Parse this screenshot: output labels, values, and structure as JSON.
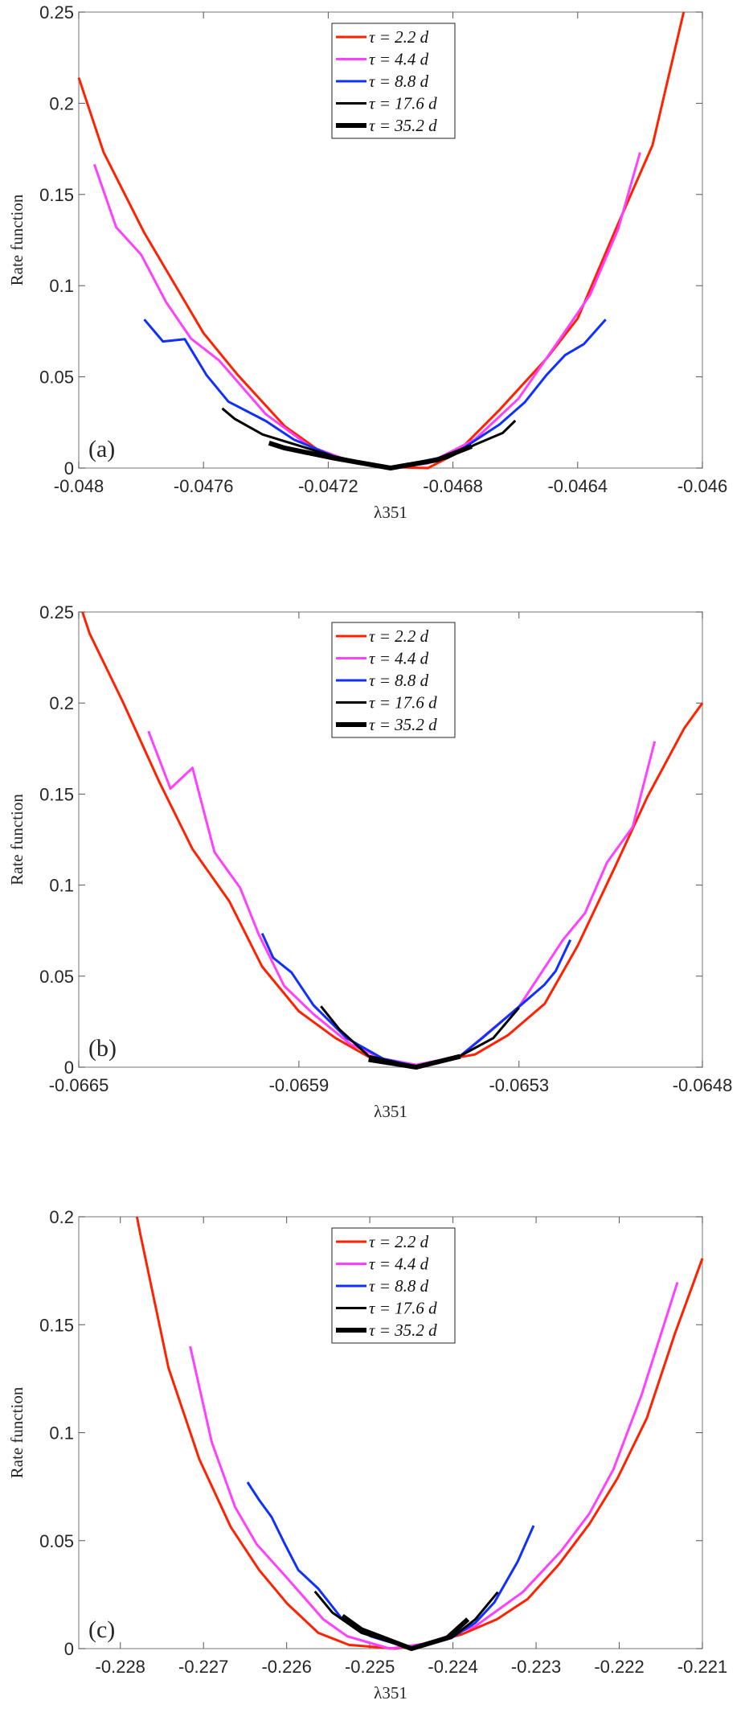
{
  "colors": {
    "tau_2_2": "#ff2200",
    "tau_4_4": "#ff40ff",
    "tau_8_8": "#1030ff",
    "tau_17_6": "#000000",
    "tau_35_2": "#000000",
    "axis": "#8c8c8c"
  },
  "chart_data": [
    {
      "type": "line",
      "panel_label": "(a)",
      "xlabel": "λ351",
      "ylabel": "Rate function",
      "xlim": [
        -0.048,
        -0.046
      ],
      "ylim": [
        0,
        0.25
      ],
      "xticks": [
        -0.048,
        -0.0476,
        -0.0472,
        -0.0468,
        -0.0464,
        -0.046
      ],
      "xtick_labels": [
        "-0.048",
        "-0.0476",
        "-0.0472",
        "-0.0468",
        "-0.0464",
        "-0.046"
      ],
      "yticks": [
        0,
        0.05,
        0.1,
        0.15,
        0.2,
        0.25
      ],
      "ytick_labels": [
        "0",
        "0.05",
        "0.1",
        "0.15",
        "0.2",
        "0.25"
      ],
      "legend_position": "top-center",
      "series": [
        {
          "name": "τ = 2.2 d",
          "color": "#ff2200",
          "width": 3,
          "x": [
            -0.048,
            -0.04792,
            -0.04779,
            -0.0476,
            -0.04749,
            -0.04734,
            -0.0472,
            -0.04703,
            -0.04688,
            -0.04679,
            -0.04665,
            -0.0465,
            -0.0464,
            -0.04627,
            -0.04616,
            -0.04606
          ],
          "y": [
            0.214,
            0.173,
            0.129,
            0.074,
            0.051,
            0.023,
            0.006,
            0.0007,
            0,
            0.008,
            0.032,
            0.06,
            0.082,
            0.134,
            0.177,
            0.25
          ]
        },
        {
          "name": "τ = 4.4 d",
          "color": "#ff40ff",
          "width": 3,
          "x": [
            -0.04795,
            -0.04788,
            -0.0478,
            -0.04772,
            -0.04764,
            -0.04755,
            -0.0474,
            -0.04726,
            -0.04711,
            -0.047,
            -0.04688,
            -0.04673,
            -0.04659,
            -0.04644,
            -0.04636,
            -0.04627,
            -0.0462
          ],
          "y": [
            0.1665,
            0.132,
            0.117,
            0.091,
            0.071,
            0.059,
            0.0295,
            0.012,
            0.0026,
            0,
            0.0026,
            0.0156,
            0.038,
            0.075,
            0.095,
            0.131,
            0.173
          ]
        },
        {
          "name": "τ = 8.8 d",
          "color": "#1030ff",
          "width": 3,
          "x": [
            -0.04779,
            -0.04773,
            -0.04766,
            -0.04759,
            -0.04752,
            -0.0474,
            -0.04731,
            -0.04718,
            -0.047,
            -0.0468,
            -0.04665,
            -0.04657,
            -0.0465,
            -0.04644,
            -0.04638,
            -0.04631
          ],
          "y": [
            0.0815,
            0.0694,
            0.0707,
            0.0509,
            0.0364,
            0.0258,
            0.0156,
            0.0063,
            0,
            0.0072,
            0.024,
            0.036,
            0.051,
            0.062,
            0.068,
            0.0815
          ]
        },
        {
          "name": "τ = 17.6 d",
          "color": "#000000",
          "width": 3,
          "x": [
            -0.04754,
            -0.0475,
            -0.04741,
            -0.04734,
            -0.04718,
            -0.047,
            -0.04682,
            -0.04673,
            -0.04664,
            -0.0466
          ],
          "y": [
            0.0327,
            0.027,
            0.0184,
            0.0147,
            0.0063,
            0,
            0.0054,
            0.0128,
            0.0193,
            0.026
          ]
        },
        {
          "name": "τ = 35.2 d",
          "color": "#000000",
          "width": 6,
          "x": [
            -0.04739,
            -0.04734,
            -0.04718,
            -0.047,
            -0.04685,
            -0.04674
          ],
          "y": [
            0.0137,
            0.011,
            0.0054,
            0,
            0.0045,
            0.0119
          ]
        }
      ]
    },
    {
      "type": "line",
      "panel_label": "(b)",
      "xlabel": "λ351",
      "ylabel": "Rate function",
      "xlim": [
        -0.0665,
        -0.0648
      ],
      "ylim": [
        0,
        0.25
      ],
      "xticks": [
        -0.0665,
        -0.0659,
        -0.0653,
        -0.0648
      ],
      "xtick_labels": [
        "-0.0665",
        "-0.0659",
        "-0.0653",
        "-0.0648"
      ],
      "yticks": [
        0,
        0.05,
        0.1,
        0.15,
        0.2,
        0.25
      ],
      "ytick_labels": [
        "0",
        "0.05",
        "0.1",
        "0.15",
        "0.2",
        "0.25"
      ],
      "legend_position": "top-center",
      "series": [
        {
          "name": "τ = 2.2 d",
          "color": "#ff2200",
          "width": 3,
          "x": [
            -0.06649,
            -0.06647,
            -0.06638,
            -0.06628,
            -0.06619,
            -0.06609,
            -0.066,
            -0.0659,
            -0.0658,
            -0.0657,
            -0.06558,
            -0.06542,
            -0.06533,
            -0.06523,
            -0.06514,
            -0.06504,
            -0.06495,
            -0.06485,
            -0.0648
          ],
          "y": [
            0.25,
            0.238,
            0.2007,
            0.1565,
            0.1198,
            0.0912,
            0.0552,
            0.0307,
            0.016,
            0.0046,
            0.0013,
            0.007,
            0.0176,
            0.0348,
            0.0667,
            0.1092,
            0.1484,
            0.186,
            0.2
          ]
        },
        {
          "name": "τ = 4.4 d",
          "color": "#ff40ff",
          "width": 3,
          "x": [
            -0.06631,
            -0.06625,
            -0.06619,
            -0.06613,
            -0.06606,
            -0.06601,
            -0.06594,
            -0.06586,
            -0.06576,
            -0.06567,
            -0.06558,
            -0.06546,
            -0.0653,
            -0.06518,
            -0.06512,
            -0.06506,
            -0.06499,
            -0.06493
          ],
          "y": [
            0.1846,
            0.153,
            0.1644,
            0.1181,
            0.0985,
            0.0732,
            0.0446,
            0.0291,
            0.0127,
            0.0046,
            0.0013,
            0.0062,
            0.0332,
            0.0699,
            0.0846,
            0.1124,
            0.132,
            0.179
          ]
        },
        {
          "name": "τ = 8.8 d",
          "color": "#1030ff",
          "width": 3,
          "x": [
            -0.066,
            -0.06597,
            -0.06592,
            -0.06586,
            -0.06577,
            -0.06567,
            -0.06558,
            -0.06546,
            -0.0654,
            -0.0653,
            -0.06523,
            -0.0652,
            -0.06516
          ],
          "y": [
            0.0735,
            0.0601,
            0.052,
            0.034,
            0.016,
            0.0046,
            0.0005,
            0.0062,
            0.016,
            0.0332,
            0.0454,
            0.0528,
            0.0699
          ]
        },
        {
          "name": "τ = 17.6 d",
          "color": "#000000",
          "width": 3,
          "x": [
            -0.06584,
            -0.06579,
            -0.06571,
            -0.06558,
            -0.06546,
            -0.06537,
            -0.0653
          ],
          "y": [
            0.0335,
            0.0209,
            0.0062,
            0,
            0.0062,
            0.016,
            0.0327
          ]
        },
        {
          "name": "τ = 35.2 d",
          "color": "#000000",
          "width": 6,
          "x": [
            -0.06571,
            -0.06558,
            -0.06546
          ],
          "y": [
            0.0042,
            0,
            0.0059
          ]
        }
      ]
    },
    {
      "type": "line",
      "panel_label": "(c)",
      "xlabel": "λ351",
      "ylabel": "Rate function",
      "xlim": [
        -0.2285,
        -0.221
      ],
      "ylim": [
        0,
        0.2
      ],
      "xticks": [
        -0.228,
        -0.227,
        -0.226,
        -0.225,
        -0.224,
        -0.223,
        -0.222,
        -0.221
      ],
      "xtick_labels": [
        "-0.228",
        "-0.227",
        "-0.226",
        "-0.225",
        "-0.224",
        "-0.223",
        "-0.222",
        "-0.221"
      ],
      "yticks": [
        0,
        0.05,
        0.1,
        0.15,
        0.2
      ],
      "ytick_labels": [
        "0",
        "0.05",
        "0.1",
        "0.15",
        "0.2"
      ],
      "legend_position": "top-center",
      "series": [
        {
          "name": "τ = 2.2 d",
          "color": "#ff2200",
          "width": 3,
          "x": [
            -0.2278,
            -0.22776,
            -0.22742,
            -0.22705,
            -0.22667,
            -0.22633,
            -0.22599,
            -0.22562,
            -0.22525,
            -0.2247,
            -0.2243,
            -0.2239,
            -0.22347,
            -0.2231,
            -0.22273,
            -0.22236,
            -0.22202,
            -0.22167,
            -0.22133,
            -0.221
          ],
          "y": [
            0.2,
            0.192,
            0.13,
            0.0877,
            0.0562,
            0.0364,
            0.0207,
            0.0073,
            0.0017,
            0,
            0.0025,
            0.0065,
            0.0136,
            0.023,
            0.0388,
            0.0577,
            0.079,
            0.1066,
            0.146,
            0.1807
          ]
        },
        {
          "name": "τ = 4.4 d",
          "color": "#ff40ff",
          "width": 3,
          "x": [
            -0.22716,
            -0.2269,
            -0.22662,
            -0.22636,
            -0.22599,
            -0.22556,
            -0.22527,
            -0.22476,
            -0.2243,
            -0.22373,
            -0.22316,
            -0.2227,
            -0.22236,
            -0.22207,
            -0.22173,
            -0.2213
          ],
          "y": [
            0.14,
            0.0956,
            0.0656,
            0.0483,
            0.0325,
            0.0136,
            0.0057,
            0,
            0.0025,
            0.0104,
            0.0262,
            0.0451,
            0.0625,
            0.083,
            0.1177,
            0.1697
          ]
        },
        {
          "name": "τ = 8.8 d",
          "color": "#1030ff",
          "width": 3,
          "x": [
            -0.22647,
            -0.22633,
            -0.22618,
            -0.22602,
            -0.22586,
            -0.22562,
            -0.22533,
            -0.22499,
            -0.2245,
            -0.22402,
            -0.22373,
            -0.2235,
            -0.22322,
            -0.22303
          ],
          "y": [
            0.0771,
            0.0688,
            0.0609,
            0.0483,
            0.0364,
            0.0278,
            0.0136,
            0.0057,
            0,
            0.0049,
            0.012,
            0.0215,
            0.0404,
            0.057
          ]
        },
        {
          "name": "τ = 17.6 d",
          "color": "#000000",
          "width": 3,
          "x": [
            -0.22566,
            -0.22545,
            -0.2251,
            -0.2245,
            -0.22402,
            -0.22373,
            -0.22346
          ],
          "y": [
            0.0265,
            0.0167,
            0.0073,
            0,
            0.0049,
            0.0136,
            0.0262
          ]
        },
        {
          "name": "τ = 35.2 d",
          "color": "#000000",
          "width": 6,
          "x": [
            -0.22533,
            -0.2251,
            -0.2245,
            -0.22407,
            -0.22382
          ],
          "y": [
            0.0151,
            0.0088,
            0,
            0.0049,
            0.0136
          ]
        }
      ]
    }
  ]
}
